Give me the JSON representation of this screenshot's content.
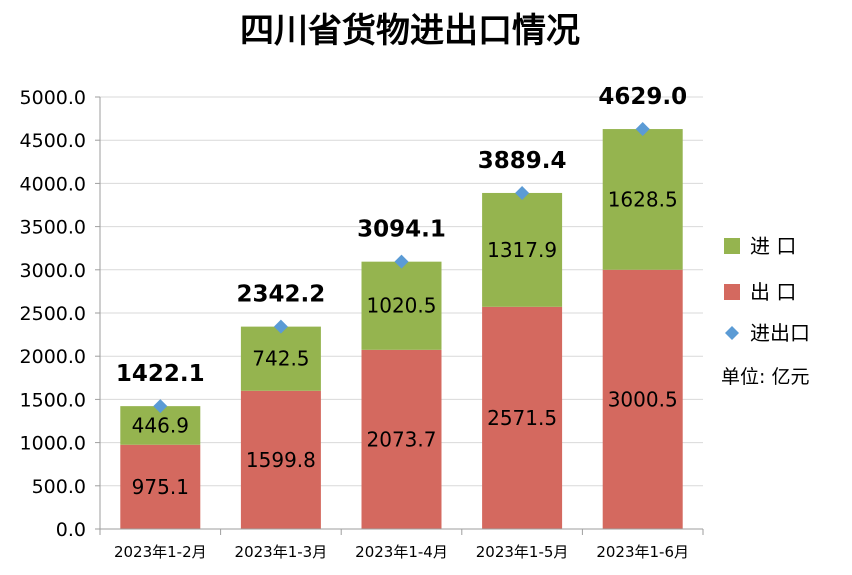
{
  "chart_data": {
    "type": "bar",
    "stacked": true,
    "title": "四川省货物进出口情况",
    "categories": [
      "2023年1-2月",
      "2023年1-3月",
      "2023年1-4月",
      "2023年1-5月",
      "2023年1-6月"
    ],
    "series": [
      {
        "name": "出  口",
        "color": "#d4695f",
        "values": [
          975.1,
          1599.8,
          2073.7,
          2571.5,
          3000.5
        ]
      },
      {
        "name": "进  口",
        "color": "#95b44f",
        "values": [
          446.9,
          742.5,
          1020.5,
          1317.9,
          1628.5
        ]
      }
    ],
    "totals": {
      "name": "进出口",
      "color": "#5b9bd5",
      "marker": "diamond",
      "values": [
        1422.1,
        2342.2,
        3094.1,
        3889.4,
        4629.0
      ]
    },
    "value_labels": {
      "出  口": [
        "975.1",
        "1599.8",
        "2073.7",
        "2571.5",
        "3000.5"
      ],
      "进  口": [
        "446.9",
        "742.5",
        "1020.5",
        "1317.9",
        "1628.5"
      ],
      "进出口": [
        "1422.1",
        "2342.2",
        "3094.1",
        "3889.4",
        "4629.0"
      ]
    },
    "ylim": [
      0,
      5000
    ],
    "yticks": [
      "0.0",
      "500.0",
      "1000.0",
      "1500.0",
      "2000.0",
      "2500.0",
      "3000.0",
      "3500.0",
      "4000.0",
      "4500.0",
      "5000.0"
    ],
    "grid": true,
    "legend_position": "right",
    "legend": [
      "进  口",
      "出  口",
      "进出口"
    ],
    "unit_note": "单位: 亿元"
  }
}
